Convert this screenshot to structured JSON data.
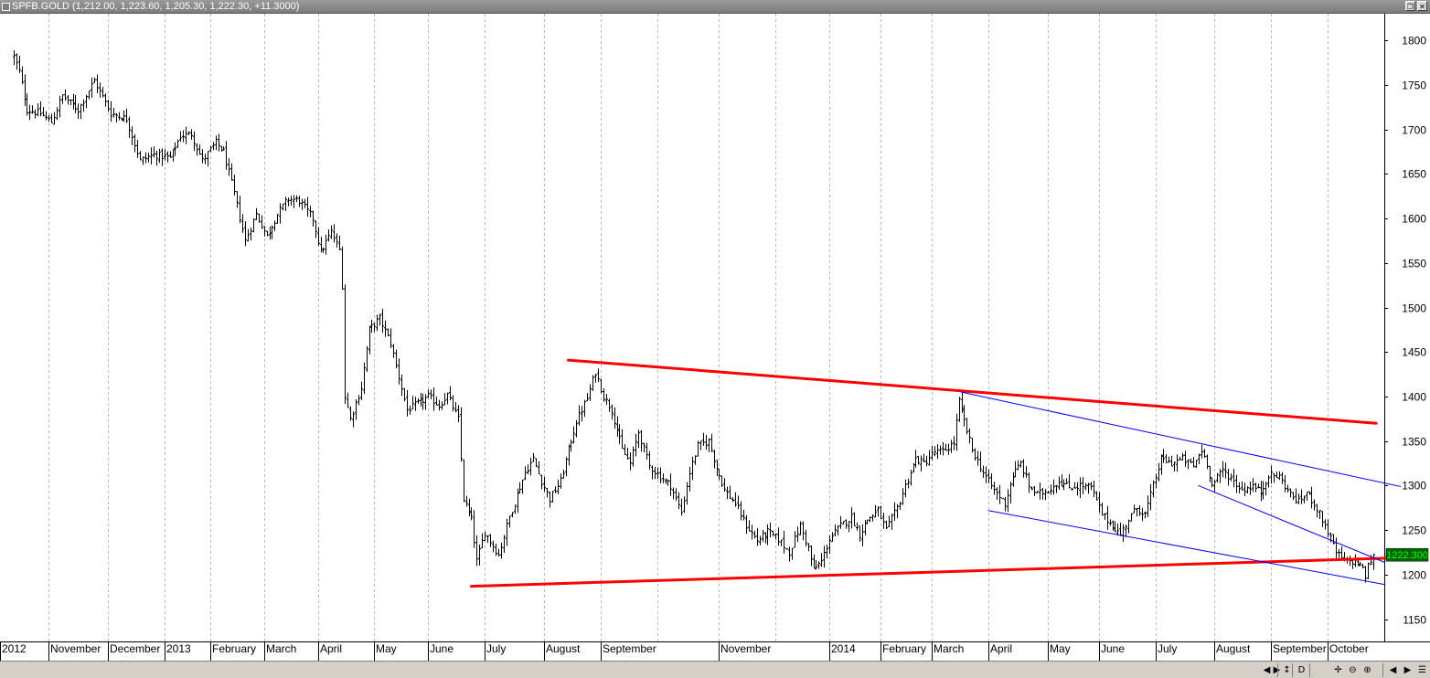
{
  "window": {
    "title": "SPFB.GOLD (1,212.00, 1,223.60, 1,205.30, 1,222.30, +11.3000)",
    "buttons": [
      "restore-icon",
      "close-icon"
    ]
  },
  "statusbar": {
    "buttons": [
      {
        "name": "scroll-left-icon",
        "glyph": "◀"
      },
      {
        "name": "scroll-right-icon",
        "glyph": "▶"
      },
      {
        "name": "vertical-scale-icon",
        "glyph": "↕"
      },
      {
        "name": "period-button",
        "glyph": "D"
      },
      {
        "name": "crosshair-icon",
        "glyph": "✛"
      },
      {
        "name": "zoom-out-icon",
        "glyph": "⊖"
      },
      {
        "name": "zoom-in-icon",
        "glyph": "⊕"
      },
      {
        "name": "nav-prev-icon",
        "glyph": "◀"
      },
      {
        "name": "nav-next-icon",
        "glyph": "▶"
      },
      {
        "name": "menu-icon",
        "glyph": "☰"
      }
    ]
  },
  "chart_data": {
    "type": "ohlc",
    "symbol": "SPFB.GOLD",
    "last": {
      "open": 1212.0,
      "high": 1223.6,
      "low": 1205.3,
      "close": 1222.3,
      "change": 11.3
    },
    "last_price_label": "1222.300",
    "ylim": [
      1125,
      1830
    ],
    "y_ticks": [
      1150,
      1200,
      1250,
      1300,
      1350,
      1400,
      1450,
      1500,
      1550,
      1600,
      1650,
      1700,
      1750,
      1800
    ],
    "x_range": [
      -5,
      509
    ],
    "x_unit": "trading days from the first bar",
    "x_labels": [
      {
        "label": "2012",
        "x": -5
      },
      {
        "label": "November",
        "x": 13
      },
      {
        "label": "December",
        "x": 35
      },
      {
        "label": "2013",
        "x": 56
      },
      {
        "label": "February",
        "x": 73
      },
      {
        "label": "March",
        "x": 93
      },
      {
        "label": "April",
        "x": 113
      },
      {
        "label": "May",
        "x": 134
      },
      {
        "label": "June",
        "x": 154
      },
      {
        "label": "July",
        "x": 175
      },
      {
        "label": "August",
        "x": 197
      },
      {
        "label": "September",
        "x": 218
      },
      {
        "label": "November",
        "x": 262
      },
      {
        "label": "2014",
        "x": 303
      },
      {
        "label": "February",
        "x": 322
      },
      {
        "label": "March",
        "x": 341
      },
      {
        "label": "April",
        "x": 362
      },
      {
        "label": "May",
        "x": 384
      },
      {
        "label": "June",
        "x": 403
      },
      {
        "label": "July",
        "x": 424
      },
      {
        "label": "August",
        "x": 446
      },
      {
        "label": "September",
        "x": 467
      },
      {
        "label": "October",
        "x": 488
      }
    ],
    "vertical_gridlines_x": [
      13,
      35,
      56,
      73,
      93,
      113,
      134,
      154,
      175,
      197,
      218,
      239,
      262,
      283,
      303,
      322,
      341,
      362,
      384,
      403,
      424,
      446,
      467,
      488
    ],
    "price_path": [
      [
        0,
        1782
      ],
      [
        2,
        1765
      ],
      [
        5,
        1722
      ],
      [
        10,
        1718
      ],
      [
        14,
        1708
      ],
      [
        18,
        1738
      ],
      [
        24,
        1722
      ],
      [
        30,
        1755
      ],
      [
        36,
        1718
      ],
      [
        42,
        1712
      ],
      [
        47,
        1665
      ],
      [
        52,
        1672
      ],
      [
        58,
        1668
      ],
      [
        62,
        1693
      ],
      [
        66,
        1695
      ],
      [
        70,
        1665
      ],
      [
        75,
        1685
      ],
      [
        78,
        1675
      ],
      [
        82,
        1628
      ],
      [
        86,
        1575
      ],
      [
        90,
        1605
      ],
      [
        94,
        1580
      ],
      [
        98,
        1605
      ],
      [
        102,
        1622
      ],
      [
        106,
        1620
      ],
      [
        111,
        1600
      ],
      [
        114,
        1562
      ],
      [
        118,
        1585
      ],
      [
        121,
        1565
      ],
      [
        122,
        1525
      ],
      [
        123,
        1400
      ],
      [
        125,
        1375
      ],
      [
        129,
        1410
      ],
      [
        132,
        1475
      ],
      [
        136,
        1488
      ],
      [
        140,
        1460
      ],
      [
        143,
        1422
      ],
      [
        146,
        1385
      ],
      [
        150,
        1392
      ],
      [
        154,
        1400
      ],
      [
        158,
        1390
      ],
      [
        161,
        1402
      ],
      [
        165,
        1375
      ],
      [
        167,
        1285
      ],
      [
        170,
        1262
      ],
      [
        172,
        1215
      ],
      [
        175,
        1248
      ],
      [
        180,
        1222
      ],
      [
        184,
        1265
      ],
      [
        187,
        1290
      ],
      [
        190,
        1315
      ],
      [
        193,
        1330
      ],
      [
        196,
        1305
      ],
      [
        199,
        1285
      ],
      [
        203,
        1305
      ],
      [
        206,
        1340
      ],
      [
        209,
        1372
      ],
      [
        213,
        1398
      ],
      [
        216,
        1428
      ],
      [
        219,
        1400
      ],
      [
        222,
        1385
      ],
      [
        226,
        1340
      ],
      [
        229,
        1325
      ],
      [
        232,
        1360
      ],
      [
        236,
        1322
      ],
      [
        240,
        1310
      ],
      [
        244,
        1300
      ],
      [
        248,
        1270
      ],
      [
        251,
        1315
      ],
      [
        254,
        1345
      ],
      [
        258,
        1350
      ],
      [
        261,
        1320
      ],
      [
        264,
        1295
      ],
      [
        268,
        1280
      ],
      [
        272,
        1255
      ],
      [
        276,
        1238
      ],
      [
        280,
        1248
      ],
      [
        284,
        1240
      ],
      [
        288,
        1225
      ],
      [
        292,
        1255
      ],
      [
        295,
        1230
      ],
      [
        297,
        1205
      ],
      [
        300,
        1215
      ],
      [
        303,
        1240
      ],
      [
        307,
        1255
      ],
      [
        311,
        1265
      ],
      [
        314,
        1245
      ],
      [
        317,
        1262
      ],
      [
        321,
        1272
      ],
      [
        324,
        1250
      ],
      [
        328,
        1275
      ],
      [
        331,
        1300
      ],
      [
        335,
        1330
      ],
      [
        338,
        1325
      ],
      [
        342,
        1338
      ],
      [
        345,
        1338
      ],
      [
        349,
        1348
      ],
      [
        351,
        1395
      ],
      [
        353,
        1372
      ],
      [
        356,
        1340
      ],
      [
        360,
        1315
      ],
      [
        364,
        1295
      ],
      [
        368,
        1280
      ],
      [
        371,
        1312
      ],
      [
        374,
        1325
      ],
      [
        377,
        1300
      ],
      [
        380,
        1290
      ],
      [
        384,
        1295
      ],
      [
        388,
        1305
      ],
      [
        392,
        1298
      ],
      [
        396,
        1300
      ],
      [
        400,
        1298
      ],
      [
        404,
        1268
      ],
      [
        408,
        1255
      ],
      [
        411,
        1245
      ],
      [
        414,
        1262
      ],
      [
        417,
        1275
      ],
      [
        420,
        1268
      ],
      [
        423,
        1300
      ],
      [
        426,
        1330
      ],
      [
        430,
        1325
      ],
      [
        434,
        1330
      ],
      [
        438,
        1322
      ],
      [
        441,
        1340
      ],
      [
        443,
        1325
      ],
      [
        445,
        1300
      ],
      [
        449,
        1318
      ],
      [
        453,
        1305
      ],
      [
        456,
        1295
      ],
      [
        460,
        1300
      ],
      [
        463,
        1292
      ],
      [
        466,
        1312
      ],
      [
        470,
        1310
      ],
      [
        474,
        1290
      ],
      [
        477,
        1282
      ],
      [
        480,
        1292
      ],
      [
        483,
        1280
      ],
      [
        486,
        1262
      ],
      [
        488,
        1248
      ],
      [
        491,
        1225
      ],
      [
        494,
        1215
      ],
      [
        497,
        1215
      ],
      [
        500,
        1212
      ],
      [
        502,
        1198
      ],
      [
        503,
        1210
      ],
      [
        505,
        1222.3
      ]
    ],
    "trendlines": [
      {
        "color": "#ff0000",
        "width": 3,
        "from": [
          206,
          1441
        ],
        "to": [
          506,
          1370
        ]
      },
      {
        "color": "#ff0000",
        "width": 3,
        "from": [
          170,
          1187
        ],
        "to": [
          515,
          1219
        ]
      },
      {
        "color": "#0000ff",
        "width": 1,
        "from": [
          352,
          1405
        ],
        "to": [
          515,
          1299
        ]
      },
      {
        "color": "#0000ff",
        "width": 1,
        "from": [
          362,
          1272
        ],
        "to": [
          509,
          1189
        ]
      },
      {
        "color": "#0000ff",
        "width": 1,
        "from": [
          440,
          1300
        ],
        "to": [
          509,
          1214
        ]
      }
    ],
    "colors": {
      "bars": "#000000",
      "gridlines": "#b8b8b8",
      "last_price_bg": "#006400",
      "last_price_text": "#00ff00"
    }
  }
}
